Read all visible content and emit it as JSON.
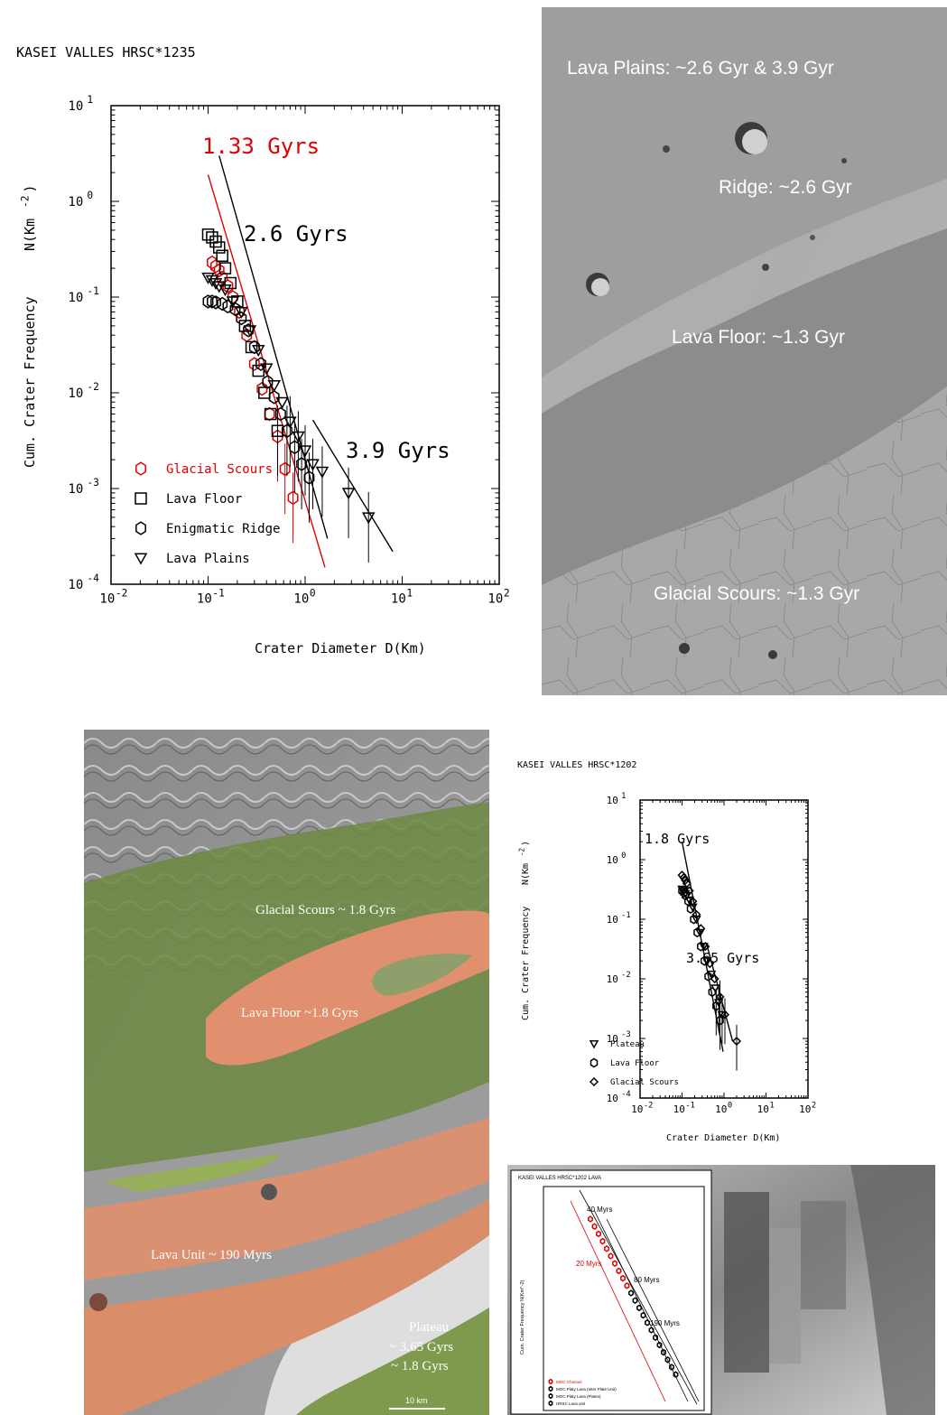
{
  "chart_data": [
    {
      "type": "scatter",
      "title": "KASEI VALLES HRSC*1235",
      "xlabel": "Crater Diameter D(Km)",
      "ylabel": "Cum. Crater Frequency   N(Km^-2)",
      "ylabel_main": "Cum. Crater Frequency",
      "ylabel_unit": "N(Km",
      "ylabel_exp": "-2",
      "ylabel_close": ")",
      "xscale": "log",
      "yscale": "log",
      "xlim": [
        0.01,
        100
      ],
      "ylim": [
        0.0001,
        10
      ],
      "x_ticks": [
        {
          "base": "10",
          "exp": "-2"
        },
        {
          "base": "10",
          "exp": "-1"
        },
        {
          "base": "10",
          "exp": "0"
        },
        {
          "base": "10",
          "exp": "1"
        },
        {
          "base": "10",
          "exp": "2"
        }
      ],
      "y_ticks": [
        {
          "base": "10",
          "exp": "1"
        },
        {
          "base": "10",
          "exp": "0"
        },
        {
          "base": "10",
          "exp": "-1"
        },
        {
          "base": "10",
          "exp": "-2"
        },
        {
          "base": "10",
          "exp": "-3"
        },
        {
          "base": "10",
          "exp": "-4"
        }
      ],
      "legend_position": "bottom-left",
      "isochrons": [
        {
          "label": "1.33 Gyrs",
          "color": "#e00000",
          "x": [
            0.1,
            1.6
          ],
          "y": [
            1.9,
            0.00015
          ]
        },
        {
          "label": "2.6 Gyrs",
          "color": "#000000",
          "x": [
            0.13,
            1.7
          ],
          "y": [
            3.0,
            0.0003
          ]
        },
        {
          "label": "3.9 Gyrs",
          "color": "#000000",
          "x": [
            1.2,
            8.0
          ],
          "y": [
            0.0052,
            0.00022
          ]
        }
      ],
      "series": [
        {
          "name": "Glacial Scours",
          "marker": "hexagon",
          "color": "#e00000",
          "x": [
            0.11,
            0.12,
            0.13,
            0.14,
            0.16,
            0.18,
            0.21,
            0.25,
            0.3,
            0.36,
            0.43,
            0.52,
            0.62,
            0.75
          ],
          "y": [
            0.23,
            0.21,
            0.19,
            0.16,
            0.13,
            0.1,
            0.07,
            0.04,
            0.02,
            0.011,
            0.006,
            0.0035,
            0.0016,
            0.0008
          ]
        },
        {
          "name": "Lava Floor",
          "marker": "square",
          "color": "#000000",
          "x": [
            0.1,
            0.11,
            0.12,
            0.13,
            0.14,
            0.15,
            0.17,
            0.2,
            0.24,
            0.28,
            0.33,
            0.38,
            0.44,
            0.52
          ],
          "y": [
            0.45,
            0.42,
            0.38,
            0.33,
            0.27,
            0.2,
            0.14,
            0.09,
            0.05,
            0.03,
            0.017,
            0.01,
            0.006,
            0.004
          ]
        },
        {
          "name": "Enigmatic Ridge",
          "marker": "hexagon-open",
          "color": "#000000",
          "x": [
            0.1,
            0.11,
            0.12,
            0.14,
            0.16,
            0.19,
            0.22,
            0.26,
            0.3,
            0.35,
            0.41,
            0.48,
            0.56,
            0.65,
            0.78,
            0.92,
            1.1
          ],
          "y": [
            0.09,
            0.09,
            0.088,
            0.085,
            0.08,
            0.075,
            0.06,
            0.045,
            0.03,
            0.02,
            0.013,
            0.009,
            0.006,
            0.004,
            0.0027,
            0.0018,
            0.0013
          ]
        },
        {
          "name": "Lava Plains",
          "marker": "triangle-down",
          "color": "#000000",
          "x": [
            0.1,
            0.11,
            0.12,
            0.13,
            0.15,
            0.18,
            0.22,
            0.27,
            0.33,
            0.4,
            0.48,
            0.58,
            0.7,
            0.85,
            1.0,
            1.2,
            1.5,
            2.8,
            4.5
          ],
          "y": [
            0.16,
            0.15,
            0.14,
            0.13,
            0.12,
            0.09,
            0.07,
            0.045,
            0.028,
            0.018,
            0.012,
            0.008,
            0.005,
            0.0035,
            0.0025,
            0.0018,
            0.0015,
            0.0009,
            0.0005
          ]
        }
      ]
    },
    {
      "type": "scatter",
      "title": "KASEI VALLES HRSC*1202",
      "xlabel": "Crater Diameter D(Km)",
      "ylabel": "Cum. Crater Frequency   N(Km^-2)",
      "ylabel_main": "Cum. Crater Frequency",
      "ylabel_unit": "N(Km",
      "ylabel_exp": "-2",
      "ylabel_close": ")",
      "xscale": "log",
      "yscale": "log",
      "xlim": [
        0.01,
        100
      ],
      "ylim": [
        0.0001,
        10
      ],
      "x_ticks": [
        {
          "base": "10",
          "exp": "-2"
        },
        {
          "base": "10",
          "exp": "-1"
        },
        {
          "base": "10",
          "exp": "0"
        },
        {
          "base": "10",
          "exp": "1"
        },
        {
          "base": "10",
          "exp": "2"
        }
      ],
      "y_ticks": [
        {
          "base": "10",
          "exp": "1"
        },
        {
          "base": "10",
          "exp": "0"
        },
        {
          "base": "10",
          "exp": "-1"
        },
        {
          "base": "10",
          "exp": "-2"
        },
        {
          "base": "10",
          "exp": "-3"
        },
        {
          "base": "10",
          "exp": "-4"
        }
      ],
      "legend_position": "bottom-left",
      "isochrons": [
        {
          "label": "1.8 Gyrs",
          "color": "#000000",
          "x": [
            0.1,
            0.95
          ],
          "y": [
            2.0,
            0.0006
          ]
        },
        {
          "label": "3.65 Gyrs",
          "color": "#000000",
          "x": [
            0.38,
            1.6
          ],
          "y": [
            0.04,
            0.0009
          ]
        }
      ],
      "series": [
        {
          "name": "Plateau",
          "marker": "triangle-down",
          "color": "#000000",
          "x": [
            0.1,
            0.11,
            0.12,
            0.13,
            0.15,
            0.18,
            0.22,
            0.27,
            0.33,
            0.4,
            0.5,
            0.62,
            0.75,
            0.9
          ],
          "y": [
            0.32,
            0.3,
            0.27,
            0.25,
            0.21,
            0.16,
            0.1,
            0.06,
            0.035,
            0.02,
            0.012,
            0.007,
            0.004,
            0.0025
          ]
        },
        {
          "name": "Lava Floor",
          "marker": "hexagon-open",
          "color": "#000000",
          "x": [
            0.1,
            0.11,
            0.12,
            0.14,
            0.16,
            0.19,
            0.23,
            0.28,
            0.34,
            0.42,
            0.52,
            0.65,
            0.8
          ],
          "y": [
            0.3,
            0.28,
            0.25,
            0.2,
            0.15,
            0.1,
            0.06,
            0.035,
            0.02,
            0.011,
            0.006,
            0.0035,
            0.002
          ]
        },
        {
          "name": "Glacial Scours",
          "marker": "diamond",
          "color": "#000000",
          "x": [
            0.1,
            0.11,
            0.12,
            0.13,
            0.15,
            0.18,
            0.22,
            0.28,
            0.36,
            0.46,
            0.6,
            0.8,
            1.05,
            2.0
          ],
          "y": [
            0.55,
            0.5,
            0.45,
            0.4,
            0.3,
            0.2,
            0.12,
            0.07,
            0.035,
            0.018,
            0.01,
            0.005,
            0.0025,
            0.0009
          ]
        }
      ]
    },
    {
      "type": "scatter",
      "title": "KASEI VALLES HRSC*1202   LAVA",
      "ylabel": "Cum. Crater Frequency   N(Km^-2)",
      "xscale": "log",
      "yscale": "log",
      "xlim": [
        0.001,
        10
      ],
      "ylim": [
        0.0001,
        100
      ],
      "isochrons": [
        {
          "label": "40 Myrs",
          "color": "#000000"
        },
        {
          "label": "20 Myrs",
          "color": "#e00000"
        },
        {
          "label": "80 Myrs",
          "color": "#000000"
        },
        {
          "label": "190 Myrs",
          "color": "#000000"
        }
      ],
      "series": [
        {
          "name": "MOC Channel",
          "color": "#e00000"
        },
        {
          "name": "MOC Platy Lava (Inter Plate Unit)",
          "color": "#000000"
        },
        {
          "name": "MOC Platy Lava (Plates)",
          "color": "#000000"
        },
        {
          "name": "HRSC Lava unit",
          "color": "#000000"
        }
      ]
    }
  ],
  "image_labels": {
    "top_right": {
      "lava_plains": "Lava Plains: ~2.6 Gyr & 3.9 Gyr",
      "ridge": "Ridge: ~2.6 Gyr",
      "lava_floor": "Lava Floor: ~1.3 Gyr",
      "glacial_scours": "Glacial Scours: ~1.3 Gyr"
    },
    "bottom_left": {
      "glacial_scours": "Glacial Scours ~ 1.8 Gyrs",
      "lava_floor": "Lava Floor ~1.8 Gyrs",
      "lava_unit": "Lava Unit ~ 190 Myrs",
      "plateau_1": "Plateau",
      "plateau_2": "~ 3.65 Gyrs",
      "plateau_3": "~ 1.8 Gyrs",
      "scale_bar": "10 km"
    }
  },
  "colors": {
    "red_series": "#e00000",
    "orange_overlay": "#e0906e",
    "green_overlay": "#7f9a4c"
  }
}
